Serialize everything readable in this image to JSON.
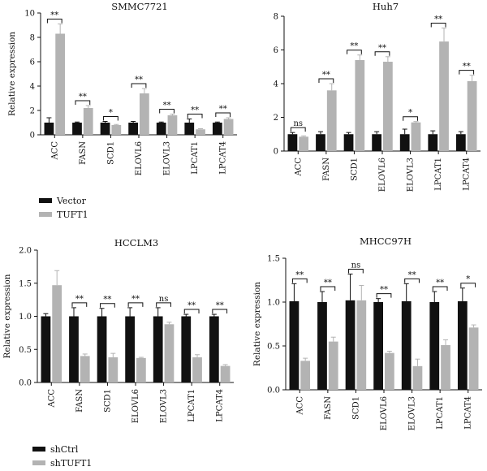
{
  "colors": {
    "series1": "#111111",
    "series2": "#b3b3b3",
    "axis": "#111111"
  },
  "legend_top": [
    "Vector",
    "TUFT1"
  ],
  "legend_bottom": [
    "shCtrl",
    "shTUFT1"
  ],
  "chart_data": [
    {
      "type": "bar",
      "title": "SMMC7721",
      "ylabel": "Relative expression",
      "categories": [
        "ACC",
        "FASN",
        "SCD1",
        "ELOVL6",
        "ELOVL3",
        "LPCAT1",
        "LPCAT4"
      ],
      "ylim": [
        0,
        10
      ],
      "yticks": [
        0,
        2,
        4,
        6,
        8,
        10
      ],
      "series": [
        {
          "name": "Vector",
          "values": [
            1.0,
            1.0,
            1.0,
            1.0,
            1.0,
            1.0,
            1.0
          ],
          "errors": [
            0.4,
            0.05,
            0.1,
            0.1,
            0.05,
            0.3,
            0.05
          ]
        },
        {
          "name": "TUFT1",
          "values": [
            8.3,
            2.2,
            0.8,
            3.4,
            1.6,
            0.45,
            1.3
          ],
          "errors": [
            0.8,
            0.2,
            0.05,
            0.4,
            0.1,
            0.05,
            0.1
          ]
        }
      ],
      "significance": [
        "**",
        "**",
        "*",
        "**",
        "**",
        "**",
        "**"
      ]
    },
    {
      "type": "bar",
      "title": "Huh7",
      "ylabel": "",
      "categories": [
        "ACC",
        "FASN",
        "SCD1",
        "ELOVL6",
        "ELOVL3",
        "LPCAT1",
        "LPCAT4"
      ],
      "ylim": [
        0,
        8
      ],
      "yticks": [
        0,
        2,
        4,
        6,
        8
      ],
      "series": [
        {
          "name": "Vector",
          "values": [
            1.0,
            1.0,
            1.0,
            1.0,
            1.0,
            1.0,
            1.0
          ],
          "errors": [
            0.1,
            0.15,
            0.1,
            0.15,
            0.3,
            0.2,
            0.15
          ]
        },
        {
          "name": "TUFT1",
          "values": [
            0.85,
            3.6,
            5.4,
            5.3,
            1.7,
            6.5,
            4.15
          ],
          "errors": [
            0.05,
            0.4,
            0.3,
            0.3,
            0.05,
            0.8,
            0.35
          ]
        }
      ],
      "significance": [
        "ns",
        "**",
        "**",
        "**",
        "*",
        "**",
        "**"
      ]
    },
    {
      "type": "bar",
      "title": "HCCLM3",
      "ylabel": "Relative expression",
      "categories": [
        "ACC",
        "FASN",
        "SCD1",
        "ELOVL6",
        "ELOVL3",
        "LPCAT1",
        "LPCAT4"
      ],
      "ylim": [
        0,
        2.0
      ],
      "yticks": [
        0.0,
        0.5,
        1.0,
        1.5,
        2.0
      ],
      "series": [
        {
          "name": "shCtrl",
          "values": [
            1.0,
            1.0,
            1.0,
            1.0,
            1.0,
            1.0,
            1.0
          ],
          "errors": [
            0.04,
            0.13,
            0.12,
            0.13,
            0.13,
            0.03,
            0.03
          ]
        },
        {
          "name": "shTUFT1",
          "values": [
            1.47,
            0.4,
            0.38,
            0.37,
            0.88,
            0.38,
            0.25
          ],
          "errors": [
            0.22,
            0.03,
            0.06,
            0.01,
            0.03,
            0.04,
            0.02
          ]
        }
      ],
      "significance": [
        "",
        "**",
        "**",
        "**",
        "ns",
        "**",
        "**"
      ]
    },
    {
      "type": "bar",
      "title": "MHCC97H",
      "ylabel": "Relative expression",
      "categories": [
        "ACC",
        "FASN",
        "SCD1",
        "ELOVL6",
        "ELOVL3",
        "LPCAT1",
        "LPCAT4"
      ],
      "ylim": [
        0.0,
        1.5
      ],
      "yticks": [
        0.0,
        0.5,
        1.0,
        1.5
      ],
      "series": [
        {
          "name": "shCtrl",
          "values": [
            1.01,
            1.0,
            1.02,
            1.0,
            1.01,
            1.0,
            1.01
          ],
          "errors": [
            0.2,
            0.12,
            0.3,
            0.04,
            0.2,
            0.12,
            0.15
          ]
        },
        {
          "name": "shTUFT1",
          "values": [
            0.33,
            0.55,
            1.02,
            0.42,
            0.27,
            0.51,
            0.71
          ],
          "errors": [
            0.03,
            0.05,
            0.17,
            0.02,
            0.08,
            0.06,
            0.03
          ]
        }
      ],
      "significance": [
        "**",
        "**",
        "ns",
        "**",
        "**",
        "**",
        "*"
      ]
    }
  ]
}
